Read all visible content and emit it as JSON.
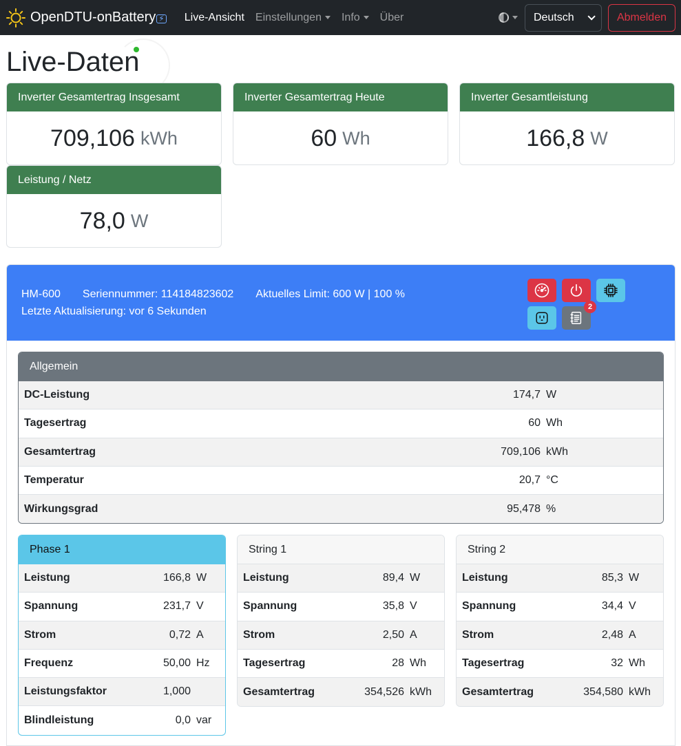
{
  "navbar": {
    "brand": "OpenDTU-onBattery",
    "brand_badge": "⚡",
    "links": [
      {
        "label": "Live-Ansicht",
        "active": true,
        "dropdown": false
      },
      {
        "label": "Einstellungen",
        "active": false,
        "dropdown": true
      },
      {
        "label": "Info",
        "active": false,
        "dropdown": true
      },
      {
        "label": "Über",
        "active": false,
        "dropdown": false
      }
    ],
    "language": "Deutsch",
    "logout": "Abmelden"
  },
  "page": {
    "title": "Live-Daten"
  },
  "summary": [
    {
      "title": "Inverter Gesamtertrag Insgesamt",
      "value": "709,106",
      "unit": "kWh"
    },
    {
      "title": "Inverter Gesamtertrag Heute",
      "value": "60",
      "unit": "Wh"
    },
    {
      "title": "Inverter Gesamtleistung",
      "value": "166,8",
      "unit": "W"
    },
    {
      "title": "Leistung / Netz",
      "value": "78,0",
      "unit": "W"
    }
  ],
  "inverter": {
    "model": "HM-600",
    "serial": "Seriennummer: 114184823602",
    "limit": "Aktuelles Limit: 600 W | 100 %",
    "last_update": "Letzte Aktualisierung: vor 6 Sekunden",
    "event_count": "2",
    "general": {
      "title": "Allgemein",
      "rows": [
        {
          "label": "DC-Leistung",
          "value": "174,7",
          "unit": "W"
        },
        {
          "label": "Tagesertrag",
          "value": "60",
          "unit": "Wh"
        },
        {
          "label": "Gesamtertrag",
          "value": "709,106",
          "unit": "kWh"
        },
        {
          "label": "Temperatur",
          "value": "20,7",
          "unit": "°C"
        },
        {
          "label": "Wirkungsgrad",
          "value": "95,478",
          "unit": "%"
        }
      ]
    },
    "phase1": {
      "title": "Phase 1",
      "rows": [
        {
          "label": "Leistung",
          "value": "166,8",
          "unit": "W"
        },
        {
          "label": "Spannung",
          "value": "231,7",
          "unit": "V"
        },
        {
          "label": "Strom",
          "value": "0,72",
          "unit": "A"
        },
        {
          "label": "Frequenz",
          "value": "50,00",
          "unit": "Hz"
        },
        {
          "label": "Leistungsfaktor",
          "value": "1,000",
          "unit": ""
        },
        {
          "label": "Blindleistung",
          "value": "0,0",
          "unit": "var"
        }
      ]
    },
    "string1": {
      "title": "String 1",
      "rows": [
        {
          "label": "Leistung",
          "value": "89,4",
          "unit": "W"
        },
        {
          "label": "Spannung",
          "value": "35,8",
          "unit": "V"
        },
        {
          "label": "Strom",
          "value": "2,50",
          "unit": "A"
        },
        {
          "label": "Tagesertrag",
          "value": "28",
          "unit": "Wh"
        },
        {
          "label": "Gesamtertrag",
          "value": "354,526",
          "unit": "kWh"
        }
      ]
    },
    "string2": {
      "title": "String 2",
      "rows": [
        {
          "label": "Leistung",
          "value": "85,3",
          "unit": "W"
        },
        {
          "label": "Spannung",
          "value": "34,4",
          "unit": "V"
        },
        {
          "label": "Strom",
          "value": "2,48",
          "unit": "A"
        },
        {
          "label": "Tagesertrag",
          "value": "32",
          "unit": "Wh"
        },
        {
          "label": "Gesamtertrag",
          "value": "354,580",
          "unit": "kWh"
        }
      ]
    }
  },
  "colors": {
    "navbar": "#212529",
    "summary_header": "#3f7f50",
    "inverter_header": "#3d7ef6",
    "general_header": "#6c757d",
    "phase_header": "#5bc6e8",
    "danger": "#dc3545"
  }
}
